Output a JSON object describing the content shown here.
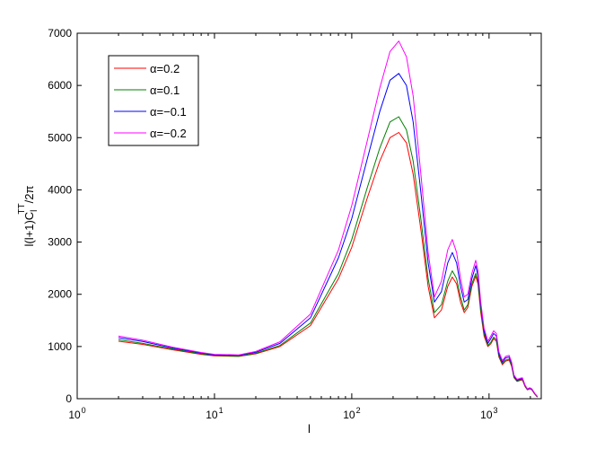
{
  "chart_data": {
    "type": "line",
    "title": "",
    "xlabel": "l",
    "ylabel": "l(l+1)C_l^TT/2π",
    "ylabel_parts": {
      "pre": "l(l+1)C",
      "sub": "l",
      "sup": "TT",
      "post": "/2π"
    },
    "xscale": "log",
    "xlim": [
      1,
      2400
    ],
    "ylim": [
      0,
      7000
    ],
    "x_ticks": [
      {
        "value": 1,
        "base": "10",
        "exp": "0"
      },
      {
        "value": 10,
        "base": "10",
        "exp": "1"
      },
      {
        "value": 100,
        "base": "10",
        "exp": "2"
      },
      {
        "value": 1000,
        "base": "10",
        "exp": "3"
      }
    ],
    "y_ticks": [
      {
        "value": 0,
        "label": "0"
      },
      {
        "value": 1000,
        "label": "1000"
      },
      {
        "value": 2000,
        "label": "2000"
      },
      {
        "value": 3000,
        "label": "3000"
      },
      {
        "value": 4000,
        "label": "4000"
      },
      {
        "value": 5000,
        "label": "5000"
      },
      {
        "value": 6000,
        "label": "6000"
      },
      {
        "value": 7000,
        "label": "7000"
      }
    ],
    "grid": false,
    "legend": "top-left",
    "x": [
      2,
      3,
      5,
      8,
      10,
      15,
      20,
      30,
      50,
      80,
      100,
      130,
      160,
      190,
      220,
      250,
      280,
      320,
      360,
      400,
      450,
      500,
      540,
      580,
      620,
      660,
      700,
      750,
      800,
      830,
      870,
      920,
      980,
      1030,
      1080,
      1130,
      1180,
      1250,
      1320,
      1400,
      1460,
      1520,
      1600,
      1680,
      1750,
      1830,
      1900,
      1980,
      2050,
      2150,
      2250
    ],
    "series": [
      {
        "name": "α=0.2",
        "color": "#ff0000",
        "values": [
          1100,
          1040,
          935,
          850,
          820,
          810,
          860,
          1000,
          1400,
          2300,
          2900,
          3850,
          4550,
          5000,
          5100,
          4900,
          4300,
          3200,
          2150,
          1550,
          1700,
          2150,
          2330,
          2200,
          1850,
          1650,
          1750,
          2150,
          2350,
          2200,
          1650,
          1200,
          1000,
          1050,
          1150,
          1100,
          800,
          650,
          720,
          740,
          620,
          400,
          330,
          350,
          360,
          230,
          170,
          190,
          170,
          90,
          30
        ]
      },
      {
        "name": "α=0.1",
        "color": "#008000",
        "values": [
          1130,
          1060,
          950,
          860,
          830,
          815,
          870,
          1020,
          1450,
          2400,
          3050,
          4050,
          4800,
          5300,
          5400,
          5150,
          4550,
          3400,
          2300,
          1650,
          1800,
          2250,
          2450,
          2300,
          1950,
          1700,
          1800,
          2200,
          2400,
          2250,
          1700,
          1250,
          1020,
          1080,
          1180,
          1130,
          820,
          670,
          740,
          760,
          640,
          410,
          340,
          360,
          370,
          240,
          175,
          195,
          175,
          95,
          35
        ]
      },
      {
        "name": "α=−0.1",
        "color": "#0000ff",
        "values": [
          1170,
          1095,
          970,
          875,
          840,
          830,
          890,
          1060,
          1550,
          2700,
          3450,
          4600,
          5500,
          6100,
          6230,
          6000,
          5300,
          3900,
          2600,
          1850,
          2050,
          2600,
          2800,
          2600,
          2150,
          1850,
          1900,
          2300,
          2550,
          2350,
          1800,
          1300,
          1060,
          1150,
          1250,
          1200,
          860,
          700,
          780,
          800,
          670,
          430,
          355,
          375,
          385,
          250,
          185,
          205,
          185,
          100,
          40
        ]
      },
      {
        "name": "α=−0.2",
        "color": "#ff00ff",
        "values": [
          1200,
          1120,
          985,
          885,
          850,
          840,
          905,
          1090,
          1620,
          2850,
          3700,
          4950,
          5950,
          6650,
          6850,
          6550,
          5800,
          4250,
          2800,
          1950,
          2250,
          2850,
          3050,
          2800,
          2300,
          1950,
          2000,
          2400,
          2650,
          2450,
          1850,
          1350,
          1100,
          1200,
          1300,
          1250,
          900,
          730,
          810,
          830,
          700,
          450,
          370,
          390,
          400,
          260,
          190,
          210,
          190,
          105,
          45
        ]
      }
    ]
  }
}
